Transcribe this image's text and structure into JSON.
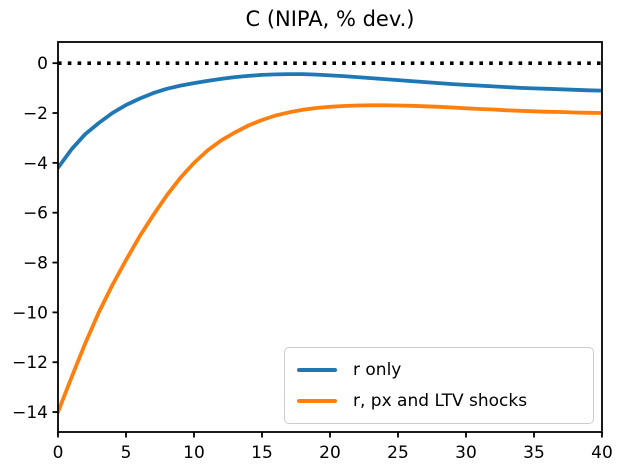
{
  "figure": {
    "background": "#ffffff"
  },
  "chart_data": {
    "type": "line",
    "title": "C (NIPA, % dev.)",
    "xlabel": "",
    "ylabel": "",
    "xlim": [
      0,
      40
    ],
    "ylim": [
      -14.8,
      0.85
    ],
    "xticks": [
      0,
      5,
      10,
      15,
      20,
      25,
      30,
      35,
      40
    ],
    "yticks": [
      0,
      -2,
      -4,
      -6,
      -8,
      -10,
      -12,
      -14
    ],
    "grid": false,
    "axis_color": "#000000",
    "reference_line": {
      "y": 0,
      "style": "dotted",
      "color": "#000000"
    },
    "legend": {
      "position": "lower right",
      "border_color": "#cccccc"
    },
    "x": [
      0,
      1,
      2,
      3,
      4,
      5,
      6,
      7,
      8,
      9,
      10,
      11,
      12,
      13,
      14,
      15,
      16,
      17,
      18,
      19,
      20,
      21,
      22,
      23,
      24,
      25,
      26,
      27,
      28,
      29,
      30,
      31,
      32,
      33,
      34,
      35,
      36,
      37,
      38,
      39,
      40
    ],
    "series": [
      {
        "name": "r only",
        "color": "#1f77b4",
        "values": [
          -4.2,
          -3.45,
          -2.85,
          -2.4,
          -2.0,
          -1.68,
          -1.42,
          -1.2,
          -1.03,
          -0.9,
          -0.8,
          -0.71,
          -0.63,
          -0.56,
          -0.51,
          -0.47,
          -0.45,
          -0.44,
          -0.44,
          -0.46,
          -0.49,
          -0.52,
          -0.56,
          -0.6,
          -0.64,
          -0.68,
          -0.72,
          -0.76,
          -0.8,
          -0.84,
          -0.87,
          -0.9,
          -0.93,
          -0.96,
          -0.99,
          -1.01,
          -1.03,
          -1.05,
          -1.07,
          -1.09,
          -1.1
        ]
      },
      {
        "name": "r, px and LTV shocks",
        "color": "#ff7f0e",
        "values": [
          -14.0,
          -12.6,
          -11.25,
          -10.0,
          -8.9,
          -7.9,
          -6.95,
          -6.1,
          -5.3,
          -4.6,
          -4.0,
          -3.5,
          -3.1,
          -2.78,
          -2.5,
          -2.28,
          -2.1,
          -1.97,
          -1.87,
          -1.8,
          -1.75,
          -1.72,
          -1.7,
          -1.69,
          -1.69,
          -1.7,
          -1.71,
          -1.73,
          -1.75,
          -1.78,
          -1.81,
          -1.84,
          -1.86,
          -1.89,
          -1.91,
          -1.93,
          -1.95,
          -1.96,
          -1.98,
          -1.99,
          -2.0
        ]
      }
    ]
  }
}
